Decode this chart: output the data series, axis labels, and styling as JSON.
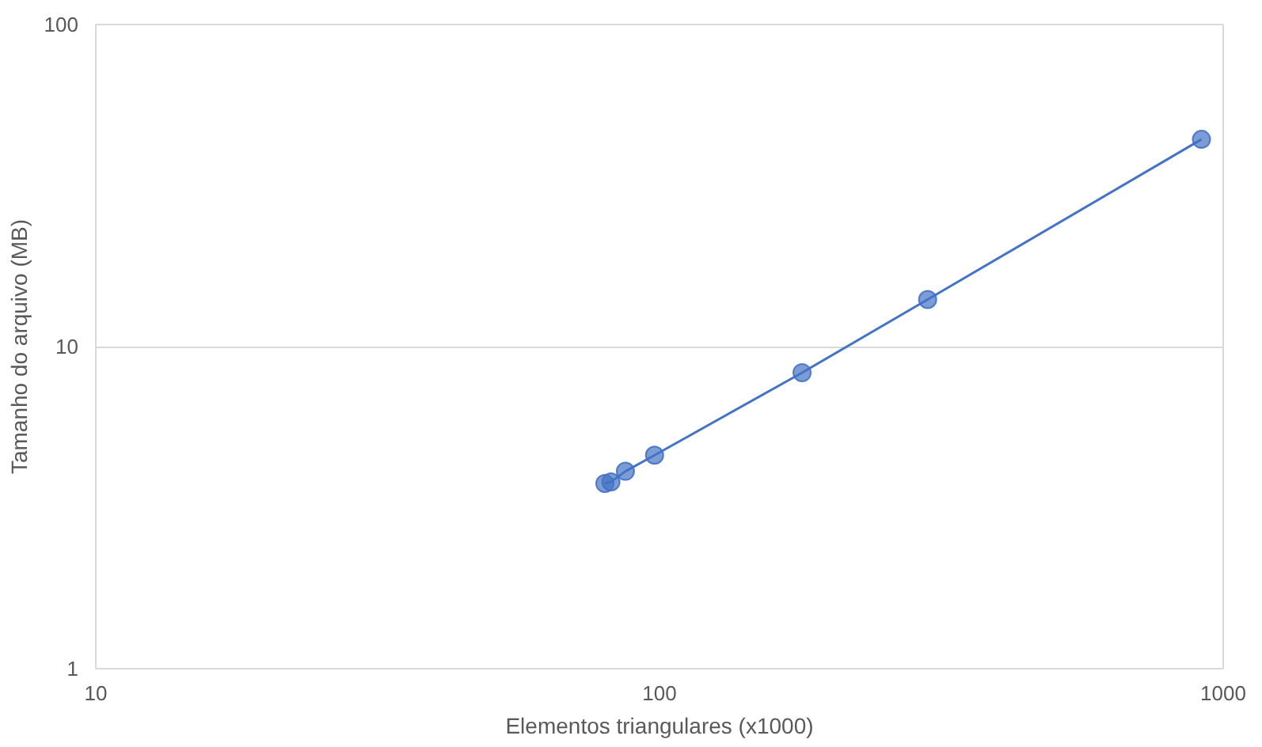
{
  "chart_data": {
    "type": "line",
    "xlabel": "Elementos triangulares (x1000)",
    "ylabel": "Tamanho do arquivo (MB)",
    "log": "xy",
    "grid": "y",
    "marker": "circle",
    "line_style": "solid",
    "xlim": [
      10,
      1000
    ],
    "xticks": [
      10,
      100,
      1000
    ],
    "ylim": [
      1,
      100
    ],
    "yticks": [
      1,
      10,
      100
    ],
    "series": [
      {
        "color": "#4472c4",
        "x": [
          80,
          82,
          87,
          98,
          179,
          299,
          915
        ],
        "values": [
          3.76,
          3.8,
          4.1,
          4.6,
          8.3,
          14,
          44
        ]
      }
    ]
  }
}
